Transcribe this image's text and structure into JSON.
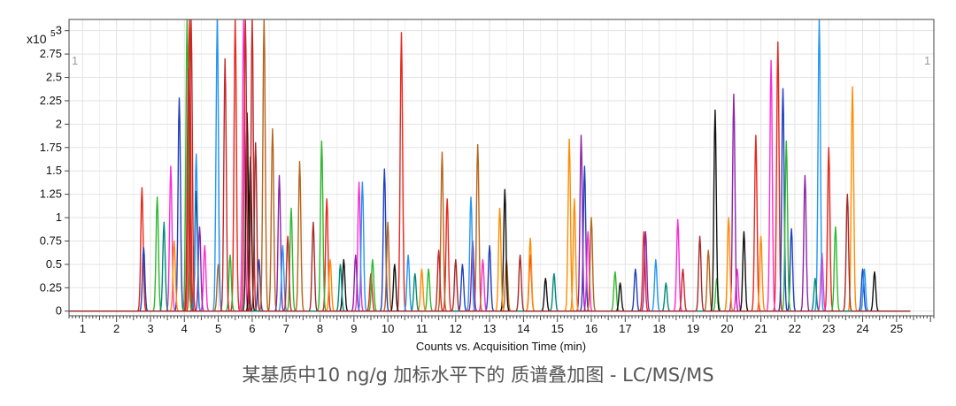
{
  "chart_data": {
    "type": "line",
    "caption": "某基质中10 ng/g 加标水平下的 质谱叠加图 - LC/MS/MS",
    "xlabel": "Counts vs. Acquisition Time (min)",
    "y_scale_label": "x10",
    "y_scale_exponent": "5",
    "corner_marks": [
      "1",
      "1"
    ],
    "xlim": [
      0.6,
      26.1
    ],
    "ylim": [
      -0.05,
      3.12
    ],
    "x_ticks": [
      1,
      2,
      3,
      4,
      5,
      6,
      7,
      8,
      9,
      10,
      11,
      12,
      13,
      14,
      15,
      16,
      17,
      18,
      19,
      20,
      21,
      22,
      23,
      24,
      25
    ],
    "y_ticks": [
      0,
      0.25,
      0.5,
      0.75,
      1,
      1.25,
      1.5,
      1.75,
      2,
      2.25,
      2.5,
      2.75,
      3
    ],
    "y_tick_labels": [
      "0",
      "0.25",
      "0.5",
      "0.75",
      "1",
      "1.25",
      "1.5",
      "1.75",
      "2",
      "2.25",
      "2.5",
      "2.75",
      "3"
    ],
    "grid": true,
    "peak_width_min": 0.035,
    "palette": [
      "#e8261c",
      "#1f3fbf",
      "#2db82d",
      "#ff2ad4",
      "#b5651d",
      "#8e24aa",
      "#111111",
      "#ff8c00",
      "#2196f3",
      "#c62828",
      "#00897b",
      "#a52a2a"
    ],
    "series": [
      {
        "color": "#e8261c",
        "peaks": [
          [
            2.75,
            1.32
          ],
          [
            4.15,
            3.12
          ],
          [
            5.5,
            3.12
          ],
          [
            10.4,
            2.98
          ],
          [
            20.85,
            1.88
          ],
          [
            21.5,
            2.88
          ],
          [
            23.0,
            1.75
          ],
          [
            8.2,
            1.2
          ],
          [
            11.75,
            1.2
          ],
          [
            14.2,
            0.6
          ],
          [
            17.55,
            0.85
          ],
          [
            9.5,
            0.4
          ]
        ]
      },
      {
        "color": "#1f3fbf",
        "peaks": [
          [
            2.8,
            0.68
          ],
          [
            3.85,
            2.28
          ],
          [
            9.9,
            1.52
          ],
          [
            15.8,
            1.55
          ],
          [
            21.65,
            2.38
          ],
          [
            21.9,
            0.88
          ],
          [
            13.0,
            0.7
          ],
          [
            17.3,
            0.45
          ],
          [
            6.2,
            0.55
          ],
          [
            12.2,
            0.5
          ],
          [
            24.0,
            0.45
          ]
        ]
      },
      {
        "color": "#2db82d",
        "peaks": [
          [
            3.2,
            1.22
          ],
          [
            4.08,
            3.12
          ],
          [
            8.05,
            1.82
          ],
          [
            7.15,
            1.1
          ],
          [
            21.75,
            1.82
          ],
          [
            9.55,
            0.55
          ],
          [
            11.2,
            0.45
          ],
          [
            16.7,
            0.42
          ],
          [
            23.2,
            0.9
          ],
          [
            19.7,
            0.35
          ],
          [
            5.35,
            0.6
          ]
        ]
      },
      {
        "color": "#ff2ad4",
        "peaks": [
          [
            5.75,
            3.12
          ],
          [
            3.6,
            1.55
          ],
          [
            9.15,
            1.38
          ],
          [
            15.9,
            0.85
          ],
          [
            18.55,
            0.98
          ],
          [
            21.3,
            2.68
          ],
          [
            22.8,
            0.62
          ],
          [
            12.8,
            0.55
          ],
          [
            4.6,
            0.7
          ],
          [
            20.3,
            0.45
          ]
        ]
      },
      {
        "color": "#b5651d",
        "peaks": [
          [
            6.35,
            3.12
          ],
          [
            6.6,
            1.95
          ],
          [
            7.4,
            1.6
          ],
          [
            10.0,
            0.95
          ],
          [
            11.6,
            1.7
          ],
          [
            12.65,
            1.78
          ],
          [
            16.0,
            1.0
          ],
          [
            19.45,
            0.65
          ],
          [
            13.5,
            0.55
          ],
          [
            5.0,
            0.5
          ]
        ]
      },
      {
        "color": "#8e24aa",
        "peaks": [
          [
            6.8,
            1.45
          ],
          [
            15.7,
            1.88
          ],
          [
            20.2,
            2.32
          ],
          [
            22.3,
            1.45
          ],
          [
            17.6,
            0.85
          ],
          [
            4.45,
            0.9
          ],
          [
            12.5,
            0.75
          ],
          [
            9.05,
            0.6
          ]
        ]
      },
      {
        "color": "#111111",
        "peaks": [
          [
            5.85,
            2.12
          ],
          [
            5.95,
            1.65
          ],
          [
            13.45,
            1.3
          ],
          [
            19.65,
            2.15
          ],
          [
            20.5,
            0.85
          ],
          [
            24.35,
            0.42
          ],
          [
            4.35,
            1.28
          ],
          [
            8.7,
            0.55
          ],
          [
            10.2,
            0.5
          ],
          [
            14.65,
            0.35
          ],
          [
            16.85,
            0.3
          ]
        ]
      },
      {
        "color": "#ff8c00",
        "peaks": [
          [
            15.35,
            1.84
          ],
          [
            23.7,
            2.4
          ],
          [
            15.5,
            1.2
          ],
          [
            13.3,
            1.1
          ],
          [
            14.2,
            0.78
          ],
          [
            20.05,
            1.0
          ],
          [
            21.0,
            0.8
          ],
          [
            3.7,
            0.75
          ],
          [
            8.3,
            0.55
          ],
          [
            11.0,
            0.45
          ]
        ]
      },
      {
        "color": "#2196f3",
        "peaks": [
          [
            4.97,
            3.12
          ],
          [
            4.35,
            1.68
          ],
          [
            9.25,
            1.38
          ],
          [
            12.45,
            1.22
          ],
          [
            22.72,
            3.12
          ],
          [
            24.05,
            0.45
          ],
          [
            10.6,
            0.6
          ],
          [
            17.9,
            0.55
          ],
          [
            6.9,
            0.7
          ]
        ]
      },
      {
        "color": "#c62828",
        "peaks": [
          [
            4.2,
            3.12
          ],
          [
            5.2,
            2.7
          ],
          [
            5.8,
            3.12
          ],
          [
            6.0,
            3.12
          ],
          [
            4.12,
            2.6
          ],
          [
            7.05,
            0.8
          ],
          [
            11.5,
            0.65
          ],
          [
            18.7,
            0.45
          ]
        ]
      },
      {
        "color": "#00897b",
        "peaks": [
          [
            3.4,
            0.95
          ],
          [
            8.6,
            0.5
          ],
          [
            14.9,
            0.4
          ],
          [
            22.6,
            0.35
          ],
          [
            18.2,
            0.3
          ],
          [
            10.8,
            0.4
          ]
        ]
      },
      {
        "color": "#a52a2a",
        "peaks": [
          [
            6.1,
            1.8
          ],
          [
            7.8,
            0.95
          ],
          [
            13.9,
            0.6
          ],
          [
            19.2,
            0.8
          ],
          [
            23.55,
            1.25
          ],
          [
            12.0,
            0.55
          ]
        ]
      }
    ]
  }
}
